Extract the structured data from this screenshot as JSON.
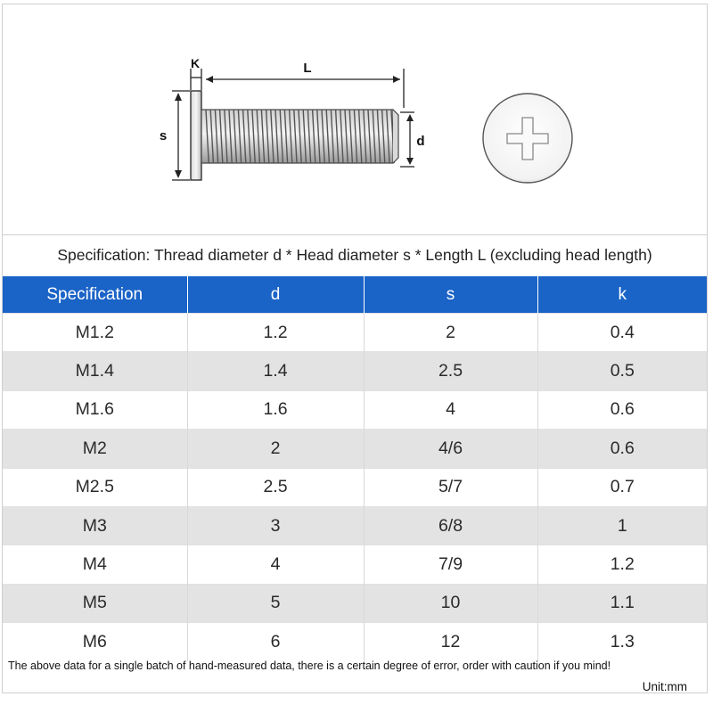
{
  "diagram": {
    "labels": {
      "k": "K",
      "l": "L",
      "s": "s",
      "d": "d"
    },
    "icons": [
      "screw-side-view-icon",
      "phillips-head-top-view-icon"
    ]
  },
  "caption": "Specification: Thread diameter d * Head diameter s * Length L (excluding head length)",
  "table": {
    "headers": [
      "Specification",
      "d",
      "s",
      "k"
    ],
    "rows": [
      [
        "M1.2",
        "1.2",
        "2",
        "0.4"
      ],
      [
        "M1.4",
        "1.4",
        "2.5",
        "0.5"
      ],
      [
        "M1.6",
        "1.6",
        "4",
        "0.6"
      ],
      [
        "M2",
        "2",
        "4/6",
        "0.6"
      ],
      [
        "M2.5",
        "2.5",
        "5/7",
        "0.7"
      ],
      [
        "M3",
        "3",
        "6/8",
        "1"
      ],
      [
        "M4",
        "4",
        "7/9",
        "1.2"
      ],
      [
        "M5",
        "5",
        "10",
        "1.1"
      ],
      [
        "M6",
        "6",
        "12",
        "1.3"
      ]
    ]
  },
  "note": "The above data for a single batch of hand-measured data, there is a certain degree of error, order with caution if you mind!",
  "unit": "Unit:mm",
  "colors": {
    "header_bg": "#1a63c7",
    "alt_row_bg": "#e3e3e3"
  }
}
